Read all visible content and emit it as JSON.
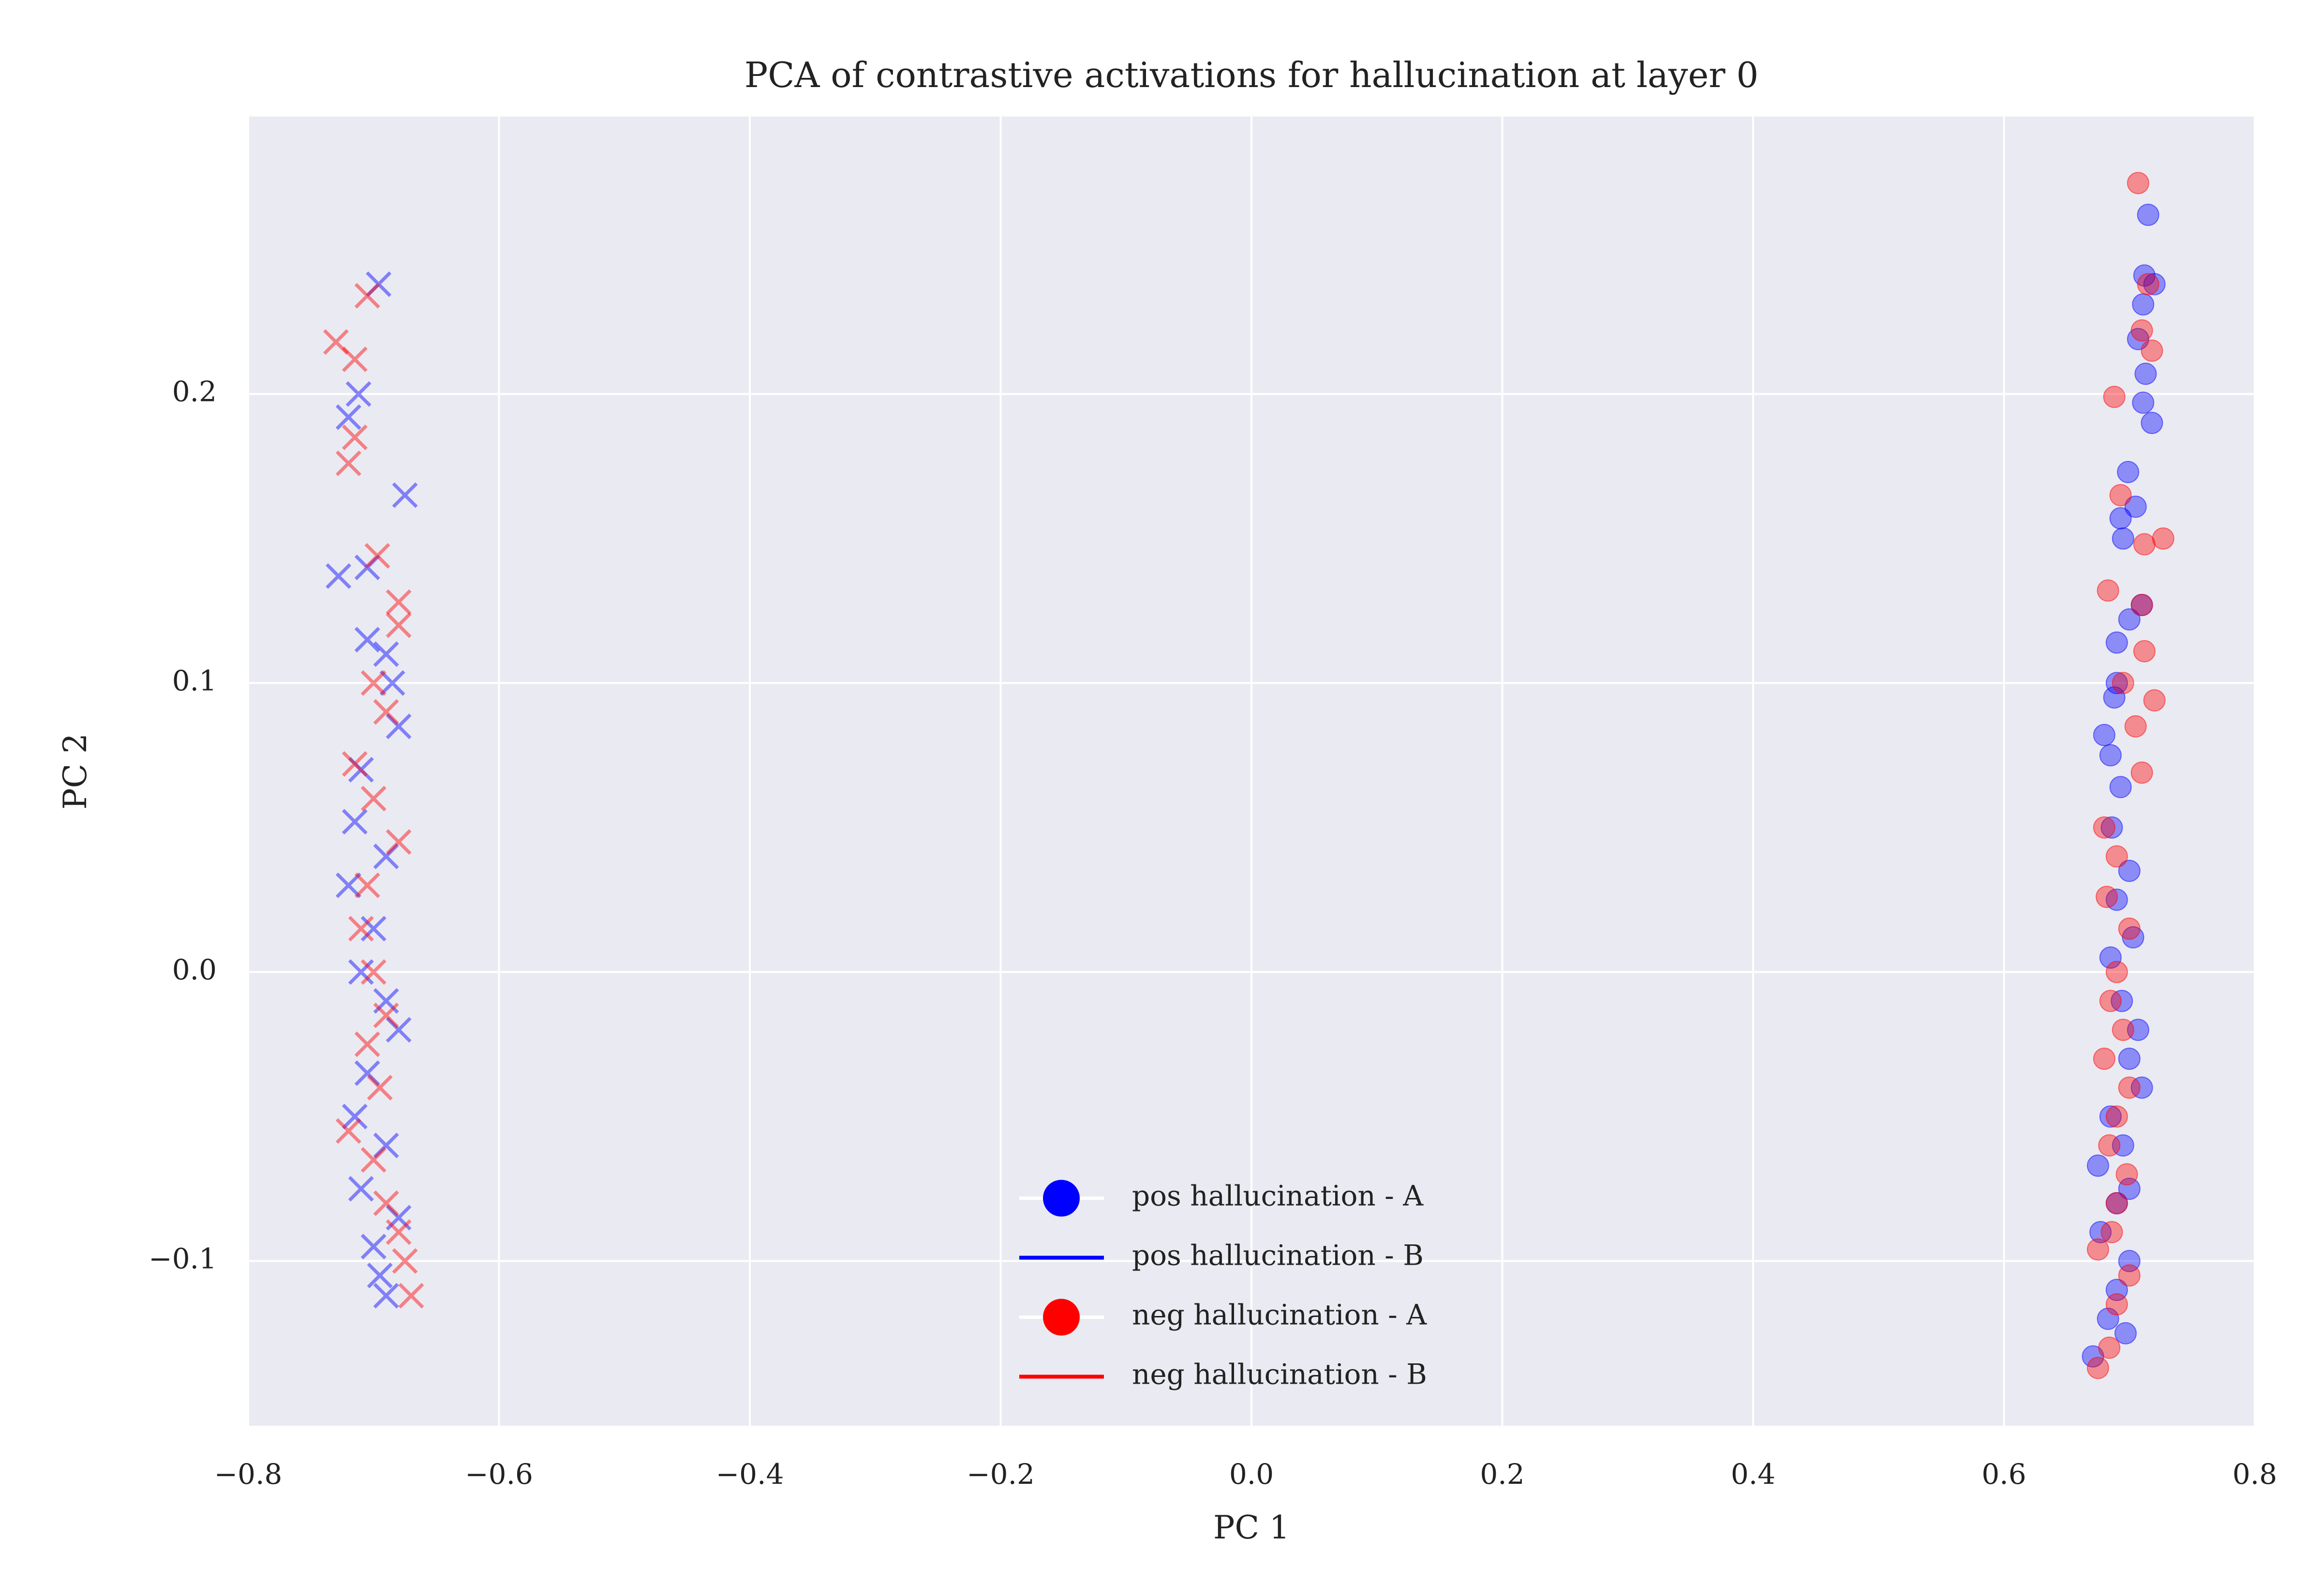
{
  "chart_data": {
    "type": "scatter",
    "title": "PCA of contrastive activations for hallucination at layer 0",
    "xlabel": "PC 1",
    "ylabel": "PC 2",
    "xlim": [
      -0.8,
      0.8
    ],
    "xticks": [
      {
        "value": -0.8,
        "label": "−0.8"
      },
      {
        "value": -0.6,
        "label": "−0.6"
      },
      {
        "value": -0.4,
        "label": "−0.4"
      },
      {
        "value": -0.2,
        "label": "−0.2"
      },
      {
        "value": 0,
        "label": "0.0"
      },
      0.2,
      0.4,
      0.6,
      0.8
    ],
    "ylim": [
      -0.157,
      0.296
    ],
    "yticks": [
      {
        "value": -0.1,
        "label": "−0.1"
      },
      {
        "value": 0,
        "label": "0.0"
      },
      0.1,
      0.2
    ],
    "grid": true,
    "legend": "lower center",
    "series": [
      {
        "name": "pos hallucination - A",
        "color": "#0000ff",
        "marker": "o",
        "x": [
          0.715,
          0.712,
          0.72,
          0.711,
          0.707,
          0.713,
          0.711,
          0.718,
          0.699,
          0.705,
          0.693,
          0.695,
          0.71,
          0.7,
          0.69,
          0.69,
          0.688,
          0.68,
          0.685,
          0.693,
          0.686,
          0.7,
          0.69,
          0.703,
          0.685,
          0.694,
          0.707,
          0.7,
          0.71,
          0.685,
          0.695,
          0.675,
          0.7,
          0.69,
          0.677,
          0.7,
          0.69,
          0.683,
          0.697,
          0.671
        ],
        "values": [
          0.262,
          0.241,
          0.238,
          0.231,
          0.219,
          0.207,
          0.197,
          0.19,
          0.173,
          0.161,
          0.157,
          0.15,
          0.127,
          0.122,
          0.114,
          0.1,
          0.095,
          0.082,
          0.075,
          0.064,
          0.05,
          0.035,
          0.025,
          0.012,
          0.005,
          -0.01,
          -0.02,
          -0.03,
          -0.04,
          -0.05,
          -0.06,
          -0.067,
          -0.075,
          -0.08,
          -0.09,
          -0.1,
          -0.11,
          -0.12,
          -0.125,
          -0.133
        ]
      },
      {
        "name": "pos hallucination - B",
        "color": "#0000ff",
        "marker": "x",
        "x": [
          -0.696,
          -0.712,
          -0.72,
          -0.675,
          -0.705,
          -0.728,
          -0.705,
          -0.69,
          -0.685,
          -0.68,
          -0.71,
          -0.715,
          -0.69,
          -0.72,
          -0.7,
          -0.71,
          -0.69,
          -0.68,
          -0.705,
          -0.715,
          -0.69,
          -0.71,
          -0.68,
          -0.7,
          -0.695,
          -0.69
        ],
        "values": [
          0.238,
          0.2,
          0.192,
          0.165,
          0.14,
          0.137,
          0.115,
          0.11,
          0.1,
          0.085,
          0.07,
          0.052,
          0.04,
          0.03,
          0.015,
          0,
          -0.01,
          -0.02,
          -0.035,
          -0.05,
          -0.06,
          -0.075,
          -0.085,
          -0.095,
          -0.105,
          -0.112
        ]
      },
      {
        "name": "neg hallucination - A",
        "color": "#ff0000",
        "marker": "o",
        "x": [
          0.707,
          0.715,
          0.71,
          0.718,
          0.688,
          0.693,
          0.727,
          0.712,
          0.683,
          0.71,
          0.712,
          0.695,
          0.72,
          0.705,
          0.71,
          0.68,
          0.69,
          0.682,
          0.7,
          0.69,
          0.685,
          0.695,
          0.68,
          0.7,
          0.69,
          0.684,
          0.698,
          0.69,
          0.686,
          0.675,
          0.7,
          0.69,
          0.684,
          0.675
        ],
        "values": [
          0.273,
          0.238,
          0.222,
          0.215,
          0.199,
          0.165,
          0.15,
          0.148,
          0.132,
          0.127,
          0.111,
          0.1,
          0.094,
          0.085,
          0.069,
          0.05,
          0.04,
          0.026,
          0.015,
          0,
          -0.01,
          -0.02,
          -0.03,
          -0.04,
          -0.05,
          -0.06,
          -0.07,
          -0.08,
          -0.09,
          -0.096,
          -0.105,
          -0.115,
          -0.13,
          -0.137
        ]
      },
      {
        "name": "neg hallucination - B",
        "color": "#ff0000",
        "marker": "x",
        "x": [
          -0.705,
          -0.73,
          -0.715,
          -0.715,
          -0.72,
          -0.697,
          -0.68,
          -0.68,
          -0.7,
          -0.69,
          -0.715,
          -0.7,
          -0.68,
          -0.705,
          -0.71,
          -0.7,
          -0.69,
          -0.705,
          -0.695,
          -0.72,
          -0.7,
          -0.69,
          -0.68,
          -0.675,
          -0.67
        ],
        "values": [
          0.234,
          0.218,
          0.212,
          0.185,
          0.176,
          0.144,
          0.128,
          0.12,
          0.1,
          0.09,
          0.072,
          0.06,
          0.045,
          0.03,
          0.015,
          0,
          -0.015,
          -0.025,
          -0.04,
          -0.055,
          -0.065,
          -0.08,
          -0.09,
          -0.1,
          -0.112
        ]
      }
    ]
  }
}
